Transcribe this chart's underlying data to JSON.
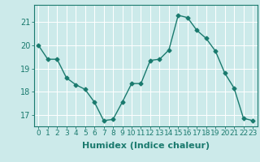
{
  "x": [
    0,
    1,
    2,
    3,
    4,
    5,
    6,
    7,
    8,
    9,
    10,
    11,
    12,
    13,
    14,
    15,
    16,
    17,
    18,
    19,
    20,
    21,
    22,
    23
  ],
  "y": [
    20.0,
    19.4,
    19.4,
    18.6,
    18.3,
    18.1,
    17.55,
    16.75,
    16.8,
    17.55,
    18.35,
    18.35,
    19.35,
    19.4,
    19.8,
    21.3,
    21.2,
    20.65,
    20.3,
    19.75,
    18.8,
    18.15,
    16.85,
    16.75
  ],
  "line_color": "#1a7a6e",
  "marker": "D",
  "marker_size": 2.5,
  "line_width": 1.0,
  "xlabel": "Humidex (Indice chaleur)",
  "ylim": [
    16.5,
    21.75
  ],
  "xlim": [
    -0.5,
    23.5
  ],
  "yticks": [
    17,
    18,
    19,
    20,
    21
  ],
  "xtick_labels": [
    "0",
    "1",
    "2",
    "3",
    "4",
    "5",
    "6",
    "7",
    "8",
    "9",
    "10",
    "11",
    "12",
    "13",
    "14",
    "15",
    "16",
    "17",
    "18",
    "19",
    "20",
    "21",
    "22",
    "23"
  ],
  "bg_color": "#cceaea",
  "grid_color": "#ffffff",
  "tick_color": "#1a7a6e",
  "label_color": "#1a7a6e",
  "xlabel_fontsize": 8,
  "ytick_fontsize": 7,
  "xtick_fontsize": 6.5
}
